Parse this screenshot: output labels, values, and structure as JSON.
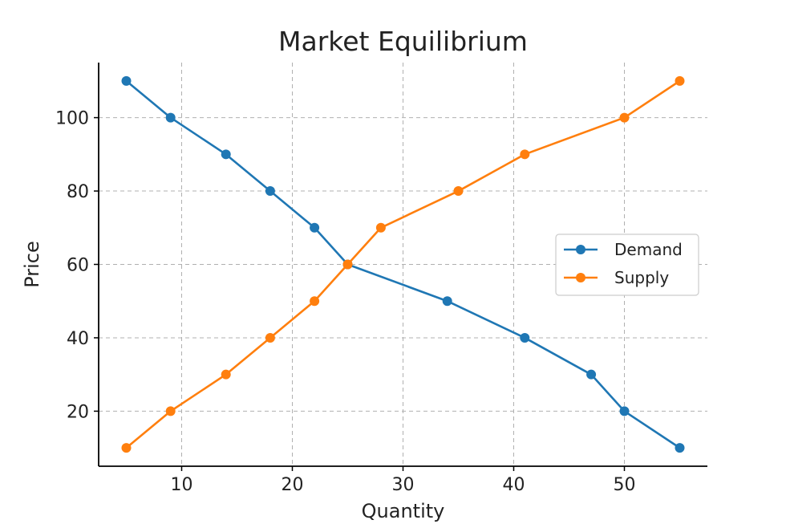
{
  "chart_data": {
    "type": "line",
    "title": "Market Equilibrium",
    "xlabel": "Quantity",
    "ylabel": "Price",
    "xlim": [
      2.5,
      57.5
    ],
    "ylim": [
      5,
      115
    ],
    "xticks": [
      10,
      20,
      30,
      40,
      50
    ],
    "yticks": [
      20,
      40,
      60,
      80,
      100
    ],
    "grid": true,
    "legend_position": "center-right",
    "series": [
      {
        "name": "Demand",
        "color": "#1f77b4",
        "marker": "circle",
        "points": [
          {
            "x": 5,
            "y": 110
          },
          {
            "x": 9,
            "y": 100
          },
          {
            "x": 14,
            "y": 90
          },
          {
            "x": 18,
            "y": 80
          },
          {
            "x": 22,
            "y": 70
          },
          {
            "x": 25,
            "y": 60
          },
          {
            "x": 34,
            "y": 50
          },
          {
            "x": 41,
            "y": 40
          },
          {
            "x": 47,
            "y": 30
          },
          {
            "x": 50,
            "y": 20
          },
          {
            "x": 55,
            "y": 10
          }
        ]
      },
      {
        "name": "Supply",
        "color": "#ff7f0e",
        "marker": "circle",
        "points": [
          {
            "x": 5,
            "y": 10
          },
          {
            "x": 9,
            "y": 20
          },
          {
            "x": 14,
            "y": 30
          },
          {
            "x": 18,
            "y": 40
          },
          {
            "x": 22,
            "y": 50
          },
          {
            "x": 25,
            "y": 60
          },
          {
            "x": 28,
            "y": 70
          },
          {
            "x": 35,
            "y": 80
          },
          {
            "x": 41,
            "y": 90
          },
          {
            "x": 50,
            "y": 100
          },
          {
            "x": 55,
            "y": 110
          }
        ]
      }
    ]
  }
}
